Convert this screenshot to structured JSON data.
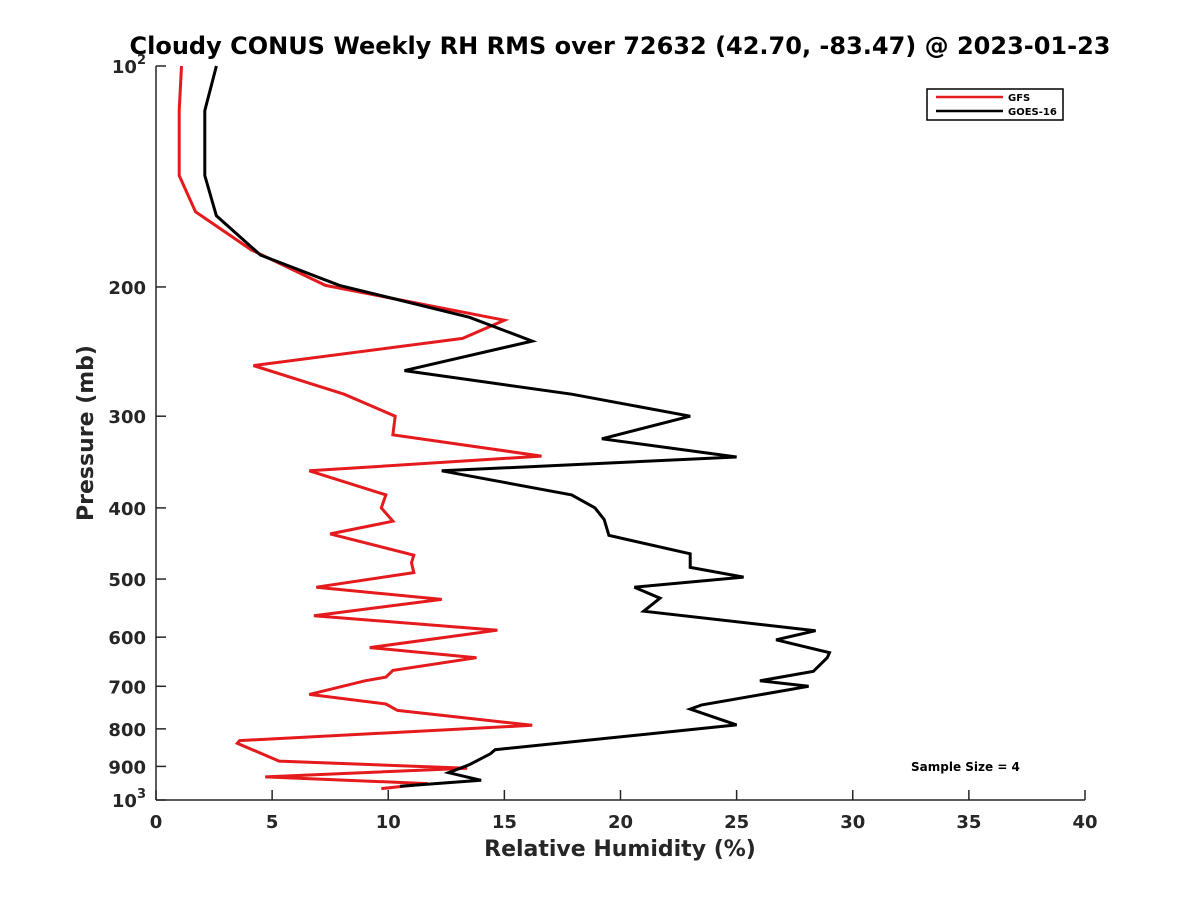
{
  "chart_data": {
    "type": "line",
    "title": "Cloudy CONUS Weekly RH RMS over 72632 (42.70, -83.47) @ 2023-01-23",
    "xlabel": "Relative Humidity (%)",
    "ylabel": "Pressure (mb)",
    "xlim": [
      0,
      40
    ],
    "ylim": [
      100,
      1000
    ],
    "yscale": "log",
    "yreversed": true,
    "x_ticks": [
      0,
      5,
      10,
      15,
      20,
      25,
      30,
      35,
      40
    ],
    "y_ticks": [
      {
        "value": 100,
        "label": "10",
        "sup": "2"
      },
      {
        "value": 200,
        "label": "200",
        "sup": ""
      },
      {
        "value": 300,
        "label": "300",
        "sup": ""
      },
      {
        "value": 400,
        "label": "400",
        "sup": ""
      },
      {
        "value": 500,
        "label": "500",
        "sup": ""
      },
      {
        "value": 600,
        "label": "600",
        "sup": ""
      },
      {
        "value": 700,
        "label": "700",
        "sup": ""
      },
      {
        "value": 800,
        "label": "800",
        "sup": ""
      },
      {
        "value": 900,
        "label": "900",
        "sup": ""
      },
      {
        "value": 1000,
        "label": "10",
        "sup": "3"
      }
    ],
    "grid": false,
    "legend_position": "top-right",
    "annotation": "Sample Size = 4",
    "series": [
      {
        "name": "GFS",
        "color": "#e41a1c",
        "points": [
          [
            1.1,
            100
          ],
          [
            1.0,
            115
          ],
          [
            1.0,
            135
          ],
          [
            1.0,
            141
          ],
          [
            1.7,
            158
          ],
          [
            4.1,
            178
          ],
          [
            7.3,
            199
          ],
          [
            15.0,
            222
          ],
          [
            13.2,
            235
          ],
          [
            4.2,
            256
          ],
          [
            8.1,
            280
          ],
          [
            10.3,
            300
          ],
          [
            10.2,
            318
          ],
          [
            16.6,
            340
          ],
          [
            6.6,
            356
          ],
          [
            9.9,
            384
          ],
          [
            9.7,
            400
          ],
          [
            10.2,
            417
          ],
          [
            7.5,
            434
          ],
          [
            11.1,
            464
          ],
          [
            11.0,
            475
          ],
          [
            11.1,
            490
          ],
          [
            6.9,
            513
          ],
          [
            12.3,
            533
          ],
          [
            6.8,
            561
          ],
          [
            14.7,
            587
          ],
          [
            9.2,
            620
          ],
          [
            13.8,
            640
          ],
          [
            10.2,
            666
          ],
          [
            9.9,
            680
          ],
          [
            9.0,
            688
          ],
          [
            6.6,
            718
          ],
          [
            9.9,
            740
          ],
          [
            10.4,
            755
          ],
          [
            16.2,
            791
          ],
          [
            3.6,
            830
          ],
          [
            3.5,
            837
          ],
          [
            5.3,
            885
          ],
          [
            13.4,
            905
          ],
          [
            4.7,
            930
          ],
          [
            11.7,
            950
          ],
          [
            9.7,
            965
          ]
        ]
      },
      {
        "name": "GOES-16",
        "color": "#000000",
        "points": [
          [
            2.6,
            100
          ],
          [
            2.1,
            115
          ],
          [
            2.1,
            138
          ],
          [
            2.1,
            141
          ],
          [
            2.6,
            160
          ],
          [
            4.5,
            181
          ],
          [
            7.9,
            199
          ],
          [
            13.5,
            220
          ],
          [
            16.2,
            237
          ],
          [
            10.7,
            260
          ],
          [
            17.9,
            280
          ],
          [
            23.0,
            300
          ],
          [
            19.2,
            322
          ],
          [
            25.0,
            341
          ],
          [
            12.3,
            356
          ],
          [
            17.9,
            384
          ],
          [
            18.9,
            400
          ],
          [
            19.3,
            415
          ],
          [
            19.5,
            436
          ],
          [
            23.0,
            462
          ],
          [
            23.0,
            482
          ],
          [
            25.3,
            497
          ],
          [
            20.6,
            513
          ],
          [
            21.7,
            531
          ],
          [
            21.0,
            553
          ],
          [
            28.4,
            588
          ],
          [
            26.7,
            605
          ],
          [
            29.0,
            630
          ],
          [
            28.9,
            640
          ],
          [
            28.3,
            668
          ],
          [
            26.0,
            688
          ],
          [
            28.1,
            700
          ],
          [
            23.5,
            742
          ],
          [
            23.0,
            752
          ],
          [
            25.0,
            790
          ],
          [
            14.6,
            854
          ],
          [
            14.4,
            865
          ],
          [
            13.5,
            895
          ],
          [
            12.6,
            918
          ],
          [
            14.0,
            940
          ],
          [
            10.5,
            958
          ]
        ]
      }
    ]
  }
}
